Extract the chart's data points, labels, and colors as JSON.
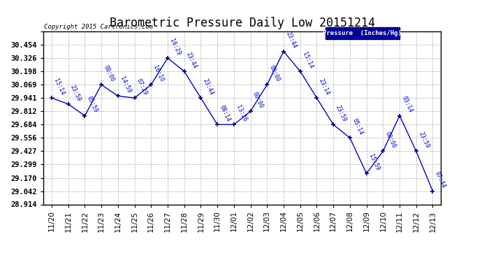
{
  "title": "Barometric Pressure Daily Low 20151214",
  "copyright": "Copyright 2015 Cartronics.com",
  "legend_label": "Pressure  (Inches/Hg)",
  "x_labels": [
    "11/20",
    "11/21",
    "11/22",
    "11/23",
    "11/24",
    "11/25",
    "11/26",
    "11/27",
    "11/28",
    "11/29",
    "11/30",
    "12/01",
    "12/02",
    "12/03",
    "12/04",
    "12/05",
    "12/06",
    "12/07",
    "12/08",
    "12/09",
    "12/10",
    "12/11",
    "12/12",
    "12/13"
  ],
  "y_values": [
    29.941,
    29.882,
    29.769,
    30.069,
    29.96,
    29.941,
    30.069,
    30.326,
    30.198,
    29.941,
    29.684,
    29.684,
    29.812,
    30.069,
    30.39,
    30.198,
    29.941,
    29.684,
    29.556,
    29.212,
    29.427,
    29.77,
    29.427,
    29.042
  ],
  "point_labels": [
    "15:14",
    "23:59",
    "05:59",
    "00:00",
    "14:59",
    "07:29",
    "16:10",
    "16:29",
    "23:44",
    "23:44",
    "08:14",
    "13:26",
    "00:00",
    "00:00",
    "23:44",
    "15:14",
    "23:14",
    "23:59",
    "05:14",
    "15:59",
    "00:00",
    "03:14",
    "23:59",
    "07:44"
  ],
  "ylim_min": 28.914,
  "ylim_max": 30.583,
  "yticks": [
    28.914,
    29.042,
    29.17,
    29.299,
    29.427,
    29.556,
    29.684,
    29.812,
    29.941,
    30.069,
    30.198,
    30.326,
    30.454,
    30.583
  ],
  "ytick_labels": [
    "28.914",
    "29.042",
    "29.170",
    "29.299",
    "29.427",
    "29.556",
    "29.684",
    "29.812",
    "29.941",
    "30.069",
    "30.198",
    "30.326",
    "30.454",
    ""
  ],
  "line_color": "#0000cc",
  "point_color": "#000080",
  "label_color": "#0000cc",
  "bg_color": "#ffffff",
  "grid_color": "#bbbbbb",
  "legend_bg": "#0000aa",
  "legend_text_color": "#ffffff"
}
